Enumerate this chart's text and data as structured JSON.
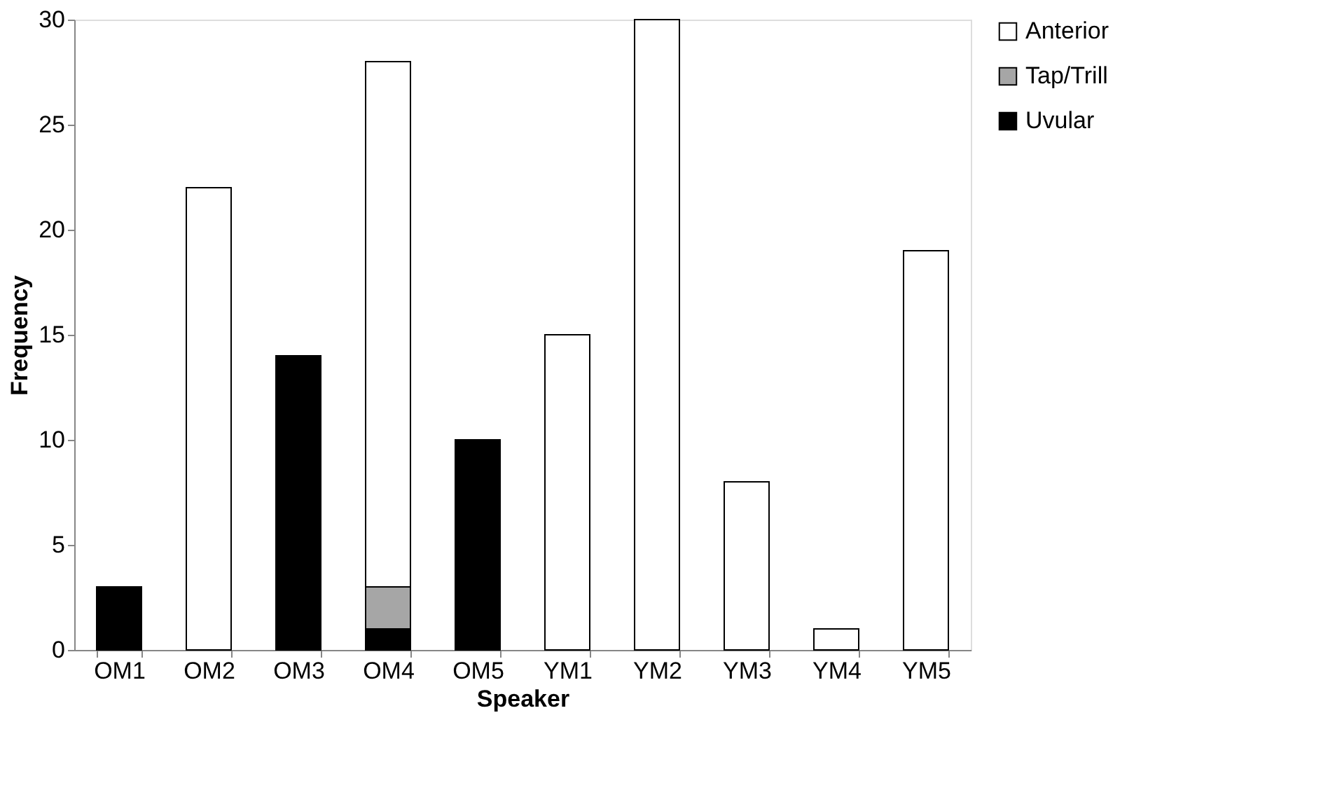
{
  "chart_data": {
    "type": "bar",
    "stacked": true,
    "xlabel": "Speaker",
    "ylabel": "Frequency",
    "categories": [
      "OM1",
      "OM2",
      "OM3",
      "OM4",
      "OM5",
      "YM1",
      "YM2",
      "YM3",
      "YM4",
      "YM5"
    ],
    "series": [
      {
        "name": "Uvular",
        "color": "#000000",
        "values": [
          3,
          null,
          14,
          1,
          10,
          null,
          null,
          null,
          null,
          null
        ]
      },
      {
        "name": "Tap/Trill",
        "color": "#a6a6a6",
        "values": [
          null,
          null,
          null,
          2,
          null,
          null,
          null,
          null,
          null,
          null
        ]
      },
      {
        "name": "Anterior",
        "color": "#ffffff",
        "values": [
          null,
          22,
          null,
          25,
          null,
          15,
          30,
          8,
          1,
          19
        ]
      }
    ],
    "ylim": [
      0,
      30
    ],
    "yticks": [
      0,
      5,
      10,
      15,
      20,
      25,
      30
    ],
    "grid": false,
    "legend": "right"
  }
}
